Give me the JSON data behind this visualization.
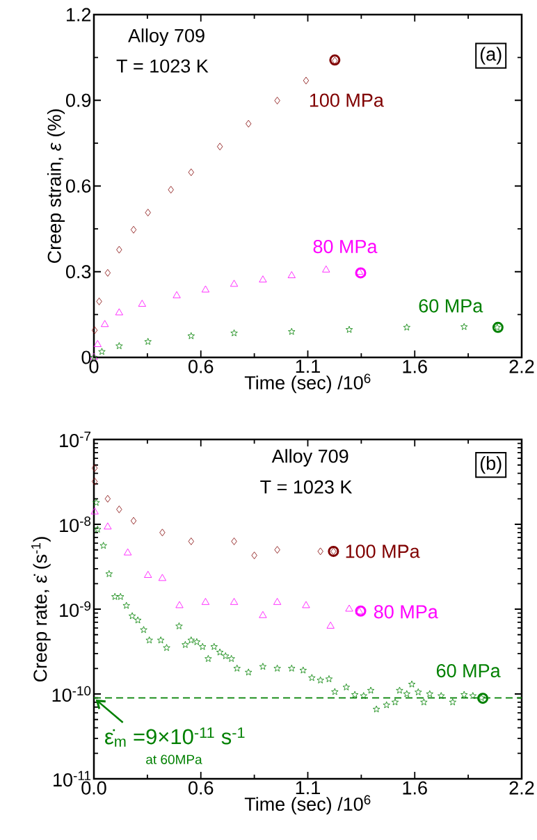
{
  "chart_data": [
    {
      "type": "scatter",
      "xlabel": "Time (sec) /10$^{6}$",
      "ylabel": "Creep strain, *ε* (%)",
      "xlim": [
        0,
        2.2
      ],
      "xticks": [
        0,
        {
          "value": 0.55,
          "label": "0.6"
        },
        1.1,
        {
          "value": 1.65,
          "label": "1.6"
        },
        2.2
      ],
      "ylim": [
        0,
        1.2
      ],
      "yticks": [
        0,
        0.3,
        0.6,
        0.9,
        1.2
      ],
      "annotations": [
        "Alloy 709",
        "T = 1023 K",
        "(a)"
      ],
      "series": [
        {
          "name": "100 MPa",
          "color": "#800000",
          "marker": "diamond",
          "x": [
            0.004,
            0.027,
            0.071,
            0.13,
            0.204,
            0.278,
            0.396,
            0.5,
            0.648,
            0.795,
            0.943,
            1.091,
            1.239
          ],
          "values": [
            0.095,
            0.196,
            0.296,
            0.377,
            0.447,
            0.507,
            0.587,
            0.648,
            0.738,
            0.818,
            0.899,
            0.969,
            1.039
          ]
        },
        {
          "color": "#800000",
          "marker": "circle",
          "x": [
            1.239
          ],
          "values": [
            1.041
          ]
        },
        {
          "name": "80 MPa",
          "color": "#ff00ff",
          "marker": "triangle",
          "x": [
            0.0,
            0.019,
            0.056,
            0.13,
            0.248,
            0.426,
            0.574,
            0.721,
            0.869,
            1.017,
            1.194,
            1.365
          ],
          "values": [
            0.0,
            0.045,
            0.115,
            0.156,
            0.186,
            0.216,
            0.236,
            0.256,
            0.271,
            0.286,
            0.306,
            0.298
          ]
        },
        {
          "color": "#ff00ff",
          "marker": "circle",
          "x": [
            1.372
          ],
          "values": [
            0.296
          ]
        },
        {
          "name": "60 MPa",
          "color": "#008000",
          "marker": "star",
          "x": [
            0.0,
            0.041,
            0.13,
            0.278,
            0.5,
            0.721,
            1.017,
            1.313,
            1.609,
            1.904,
            2.074
          ],
          "values": [
            0.0,
            0.02,
            0.04,
            0.055,
            0.075,
            0.085,
            0.09,
            0.097,
            0.105,
            0.107,
            0.105
          ]
        },
        {
          "color": "#008000",
          "marker": "circle",
          "x": [
            2.078
          ],
          "values": [
            0.105
          ]
        }
      ]
    },
    {
      "type": "scatter",
      "xlabel": "Time (sec) /10$^{6}$",
      "ylabel": "Creep rate, ε̇ (s$^{-1}$)",
      "log": true,
      "xlim": [
        0,
        2.2
      ],
      "xticks": [
        {
          "value": 0,
          "label": "0.0"
        },
        {
          "value": 0.55,
          "label": "0.6"
        },
        1.1,
        {
          "value": 1.65,
          "label": "1.6"
        },
        2.2
      ],
      "ylim": [
        1e-11,
        1e-07
      ],
      "yticks": [
        {
          "value": 1e-11,
          "label": "10$^{-11}$"
        },
        {
          "value": 1e-10,
          "label": "10$^{-10}$"
        },
        {
          "value": 1e-09,
          "label": "10$^{-9}$"
        },
        {
          "value": 1e-08,
          "label": "10$^{-8}$"
        },
        {
          "value": 1e-07,
          "label": "10$^{-7}$"
        }
      ],
      "annotations": [
        "Alloy 709",
        "T = 1023 K",
        "(b)",
        "at 60MPa",
        {
          "text": "ε̇$_{m}$ =9×10$^{-11}$ s$^{-1}$",
          "x": 0,
          "y": 9e-11
        }
      ],
      "ref_lines": [
        {
          "axis": "y",
          "value": 9e-11,
          "color": "#008000",
          "line_style": "dashed"
        }
      ],
      "series": [
        {
          "name": "100 MPa",
          "color": "#800000",
          "marker": "diamond",
          "x": [
            0.004,
            0.004,
            0.071,
            0.13,
            0.204,
            0.352,
            0.5,
            0.721,
            0.825,
            0.943,
            1.165,
            1.232
          ],
          "values": [
            4.6e-08,
            3.2e-08,
            2e-08,
            1.5e-08,
            1.1e-08,
            8e-09,
            6.3e-09,
            6.3e-09,
            4.3e-09,
            5e-09,
            4.8e-09,
            4.8e-09
          ]
        },
        {
          "color": "#800000",
          "marker": "circle",
          "x": [
            1.232
          ],
          "values": [
            4.8e-09
          ]
        },
        {
          "name": "80 MPa",
          "color": "#ff00ff",
          "marker": "triangle",
          "x": [
            0.004,
            0.071,
            0.174,
            0.278,
            0.352,
            0.44,
            0.574,
            0.721,
            0.869,
            0.943,
            1.091,
            1.217,
            1.313,
            1.365
          ],
          "values": [
            1.4e-08,
            9.3e-09,
            4.6e-09,
            2.5e-09,
            2.3e-09,
            1.1e-09,
            1.2e-09,
            1.2e-09,
            8.4e-10,
            1.2e-09,
            1.1e-09,
            6.3e-10,
            1e-09,
            9.3e-10
          ]
        },
        {
          "color": "#ff00ff",
          "marker": "circle",
          "x": [
            1.372
          ],
          "values": [
            9.5e-10
          ]
        },
        {
          "name": "60 MPa",
          "color": "#008000",
          "marker": "star",
          "x": [
            0.012,
            0.019,
            0.049,
            0.078,
            0.108,
            0.137,
            0.167,
            0.197,
            0.226,
            0.256,
            0.285,
            0.344,
            0.374,
            0.438,
            0.47,
            0.5,
            0.529,
            0.559,
            0.588,
            0.618,
            0.648,
            0.677,
            0.707,
            0.736,
            0.795,
            0.869,
            0.943,
            1.017,
            1.076,
            1.121,
            1.165,
            1.209,
            1.239,
            1.298,
            1.342,
            1.387,
            1.424,
            1.453,
            1.505,
            1.549,
            1.572,
            1.609,
            1.635,
            1.668,
            1.697,
            1.727,
            1.786,
            1.845,
            1.904,
            1.949,
            1.993
          ],
          "values": [
            1.8e-08,
            8.7e-09,
            5.6e-09,
            2.6e-09,
            1.4e-09,
            1.4e-09,
            1.1e-09,
            8.3e-10,
            7.4e-10,
            5.7e-10,
            4.3e-10,
            4.3e-10,
            3.5e-10,
            6.3e-10,
            3.8e-10,
            4.3e-10,
            4.1e-10,
            3.6e-10,
            2.6e-10,
            3.6e-10,
            3.1e-10,
            2.8e-10,
            2.6e-10,
            2e-10,
            1.8e-10,
            2.1e-10,
            2e-10,
            2e-10,
            1.9e-10,
            1.55e-10,
            1.45e-10,
            1.5e-10,
            1.06e-10,
            1.2e-10,
            9.8e-11,
            9.5e-11,
            1.1e-10,
            6.6e-11,
            7.4e-11,
            8e-11,
            1.1e-10,
            1e-10,
            1.3e-10,
            1.05e-10,
            8e-11,
            1e-10,
            9.5e-11,
            8e-11,
            9.8e-11,
            9.5e-11,
            9e-11
          ]
        },
        {
          "color": "#008000",
          "marker": "circle",
          "x": [
            2.0
          ],
          "values": [
            8.9e-11
          ]
        }
      ]
    }
  ]
}
